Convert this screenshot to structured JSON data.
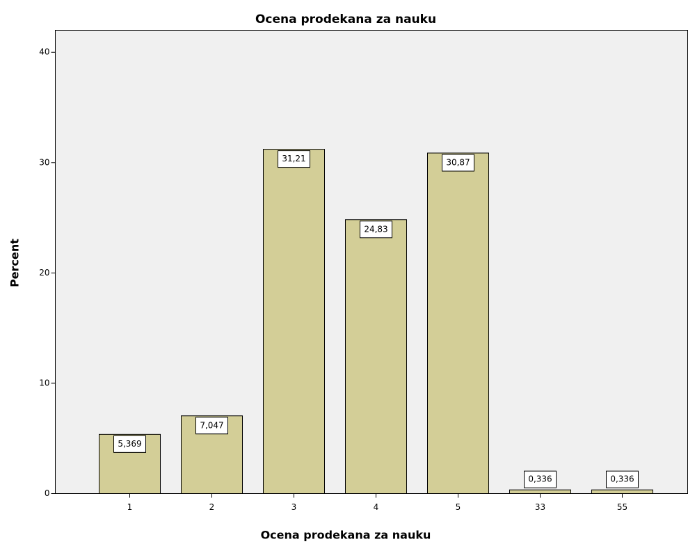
{
  "chart_data": {
    "type": "bar",
    "title": "Ocena prodekana za nauku",
    "x_label": "Ocena prodekana za nauku",
    "y_label": "Percent",
    "categories": [
      "1",
      "2",
      "3",
      "4",
      "5",
      "33",
      "55"
    ],
    "values": [
      5.369,
      7.047,
      31.21,
      24.83,
      30.87,
      0.336,
      0.336
    ],
    "value_labels": [
      "5,369",
      "7,047",
      "31,21",
      "24,83",
      "30,87",
      "0,336",
      "0,336"
    ],
    "color": "#d3ce97",
    "ylim": [
      0,
      42
    ],
    "yticks": [
      0,
      10,
      20,
      30,
      40
    ],
    "grid": false
  }
}
